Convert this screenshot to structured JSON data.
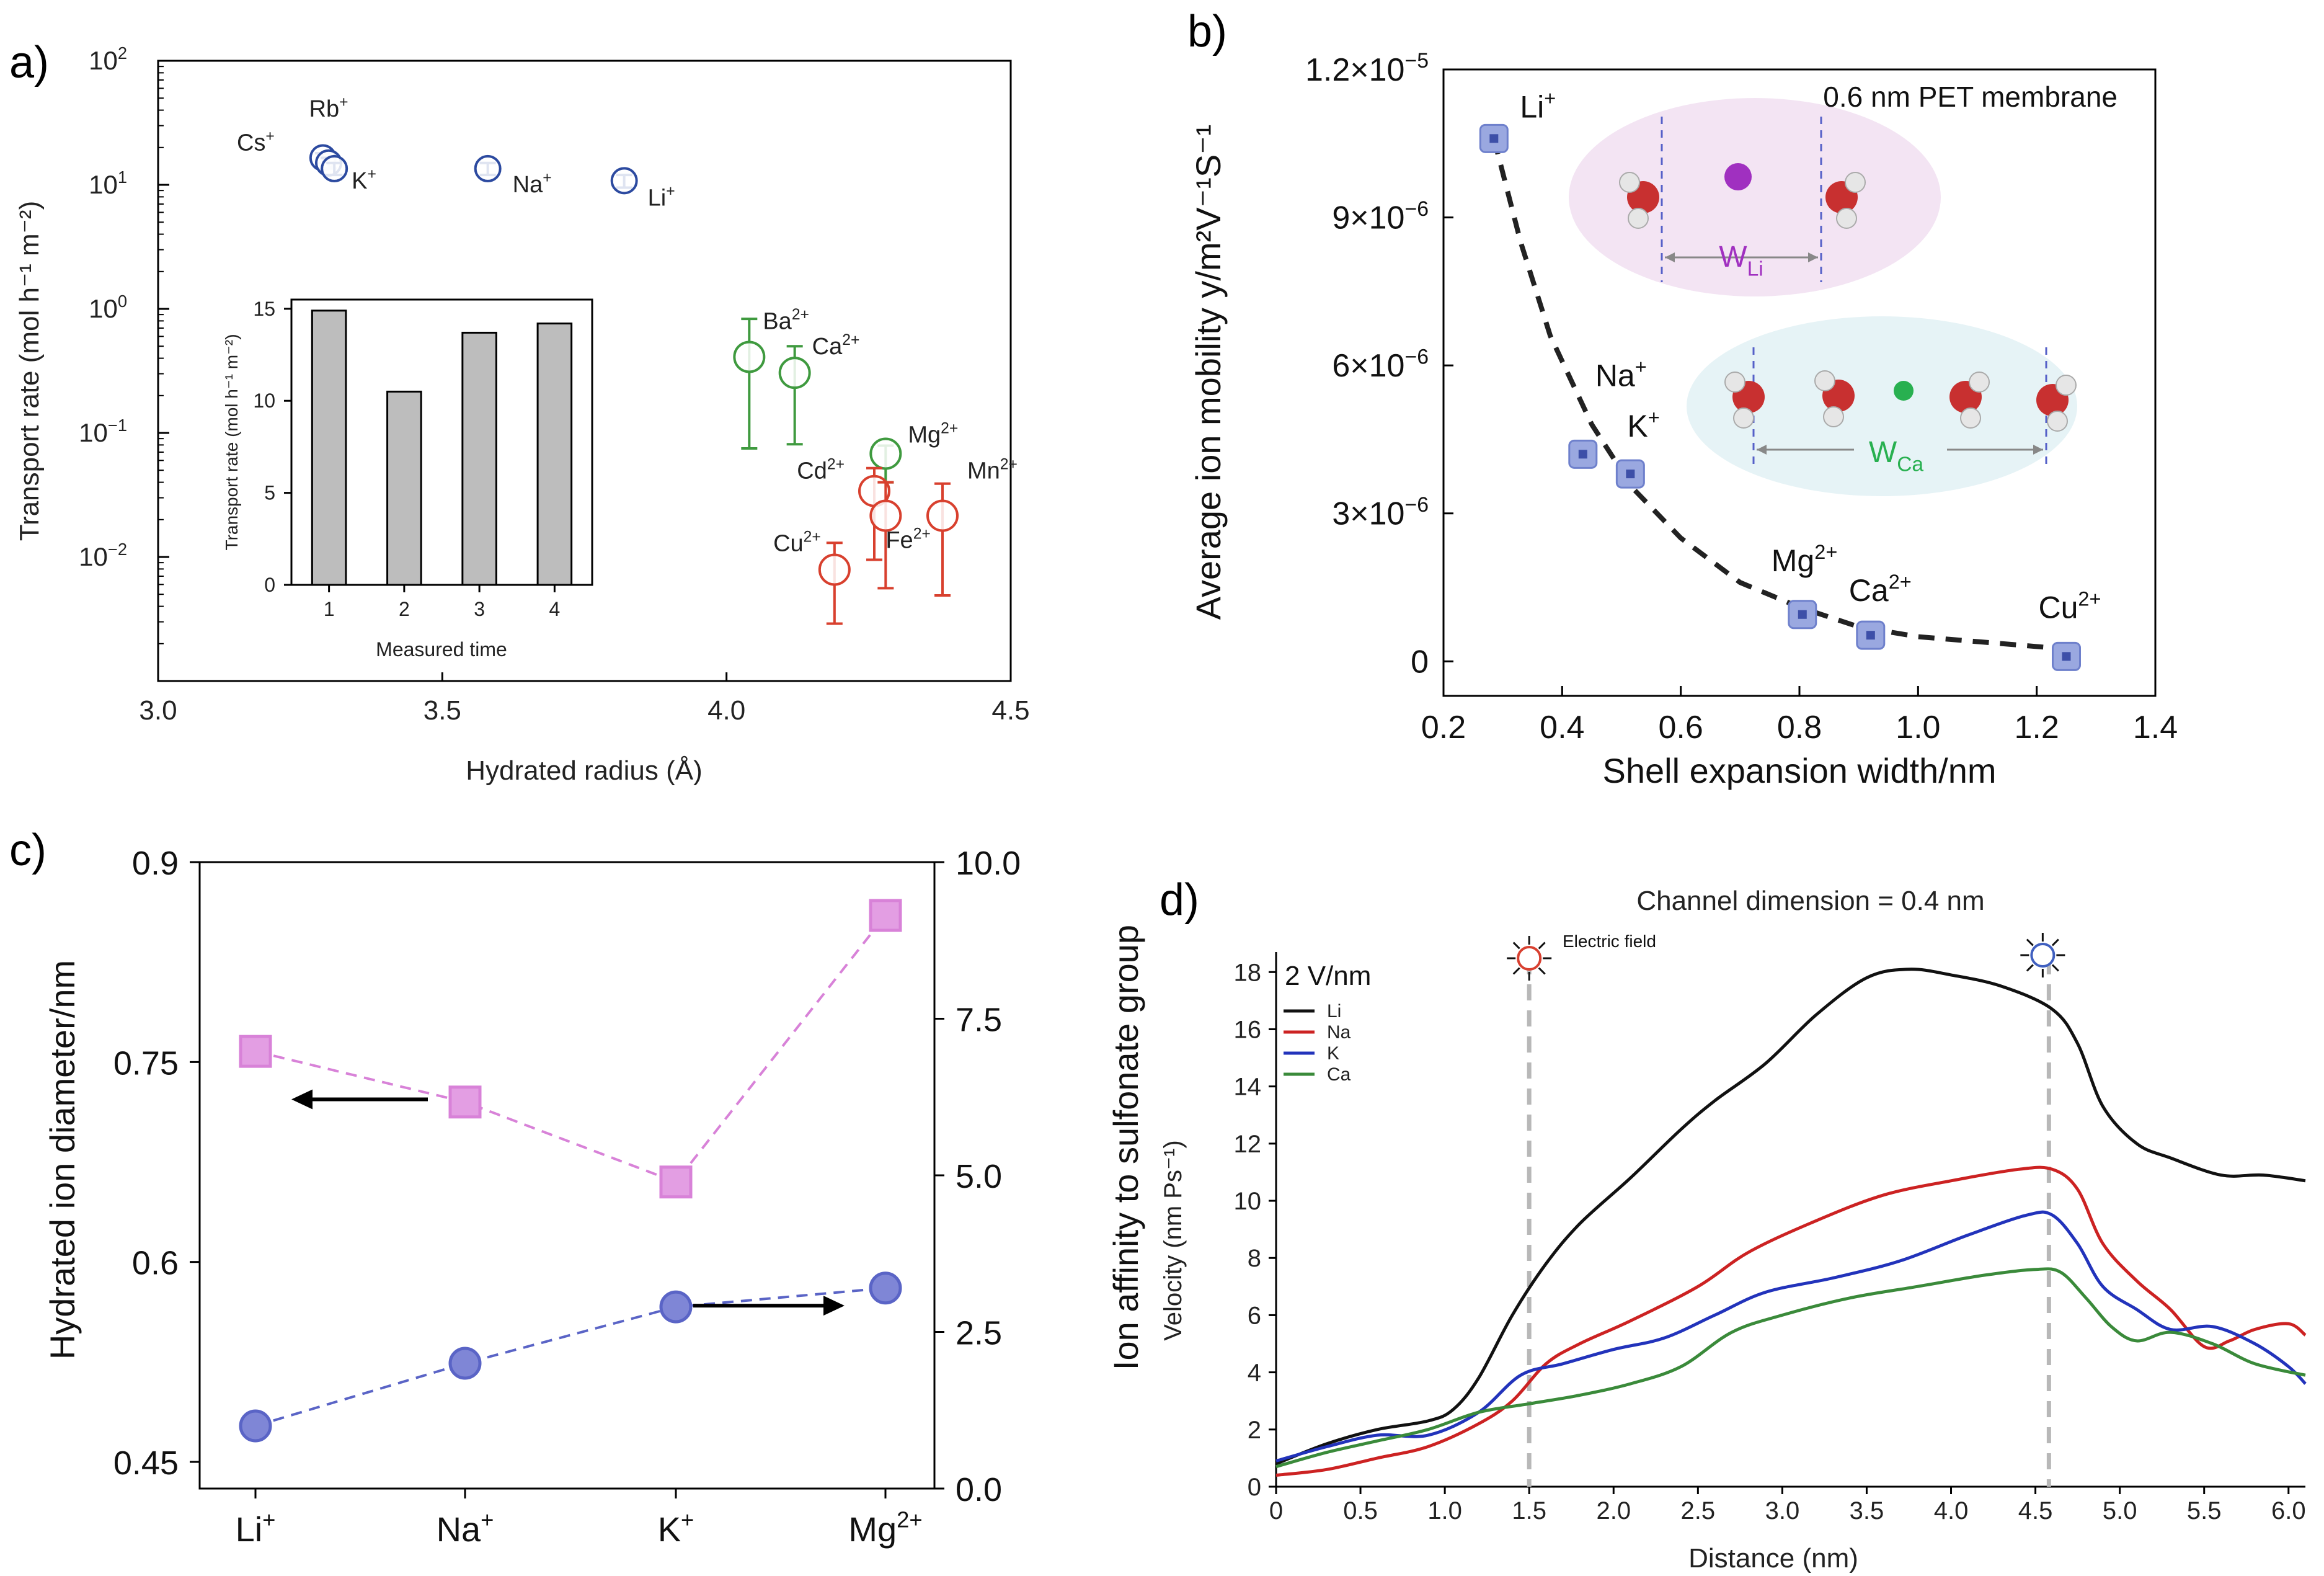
{
  "colors": {
    "blue": "#2c4aa0",
    "green": "#3f9a3f",
    "red": "#d8402e",
    "bar": "#bdbdbd",
    "markerA": "#9aa8e0",
    "markerAEdge": "#6e80cc",
    "pink": "#d882d8",
    "pinkFill": "#e39ee3",
    "bluePt": "#5a64c6",
    "bluePtFill": "#7f86d6",
    "li": "#111111",
    "na": "#cc2222",
    "k": "#2233bb",
    "ca": "#3a8a3a",
    "pinkRegion": "#f3e4f3",
    "cyanRegion": "#e6f3f6",
    "dashDivider": "#b8b8b8"
  },
  "panels": {
    "a": {
      "label": "a)"
    },
    "b": {
      "label": "b)"
    },
    "c": {
      "label": "c)"
    },
    "d": {
      "label": "d)"
    }
  },
  "chart_data": [
    {
      "panel": "a",
      "type": "scatter",
      "xlabel": "Hydrated radius (Å)",
      "ylabel": "Transport rate (mol h⁻¹ m⁻²)",
      "xlim": [
        3.0,
        4.5
      ],
      "ylim": [
        0.001,
        100
      ],
      "yscale": "log",
      "xticks": [
        "3.0",
        "3.5",
        "4.0",
        "4.5"
      ],
      "yticks": [
        {
          "v": 0.01,
          "base": "10",
          "exp": "−2"
        },
        {
          "v": 0.1,
          "base": "10",
          "exp": "−1"
        },
        {
          "v": 1,
          "base": "10",
          "exp": "0"
        },
        {
          "v": 10,
          "base": "10",
          "exp": "1"
        },
        {
          "v": 100,
          "base": "10",
          "exp": "2"
        }
      ],
      "points": [
        {
          "ion": "Cs",
          "sup": "+",
          "x": 3.29,
          "y": 16.5,
          "lo": 15.0,
          "hi": 18.0,
          "color": "blue"
        },
        {
          "ion": "Rb",
          "sup": "+",
          "x": 3.3,
          "y": 15.0,
          "lo": 13.5,
          "hi": 16.5,
          "color": "blue"
        },
        {
          "ion": "K",
          "sup": "+",
          "x": 3.31,
          "y": 13.5,
          "lo": 12.0,
          "hi": 15.0,
          "color": "blue"
        },
        {
          "ion": "Na",
          "sup": "+",
          "x": 3.58,
          "y": 13.5,
          "lo": 12.0,
          "hi": 15.0,
          "color": "blue"
        },
        {
          "ion": "Li",
          "sup": "+",
          "x": 3.82,
          "y": 10.8,
          "lo": 9.5,
          "hi": 12.0,
          "color": "blue"
        },
        {
          "ion": "Ba",
          "sup": "2+",
          "x": 4.04,
          "y": 0.41,
          "lo": 0.075,
          "hi": 0.83,
          "color": "green"
        },
        {
          "ion": "Ca",
          "sup": "2+",
          "x": 4.12,
          "y": 0.305,
          "lo": 0.081,
          "hi": 0.5,
          "color": "green"
        },
        {
          "ion": "Mg",
          "sup": "2+",
          "x": 4.28,
          "y": 0.068,
          "lo": 0.04,
          "hi": 0.079,
          "color": "green"
        },
        {
          "ion": "Cd",
          "sup": "2+",
          "x": 4.26,
          "y": 0.034,
          "lo": 0.0095,
          "hi": 0.052,
          "color": "red"
        },
        {
          "ion": "Fe",
          "sup": "2+",
          "x": 4.28,
          "y": 0.0215,
          "lo": 0.0056,
          "hi": 0.04,
          "color": "red"
        },
        {
          "ion": "Mn",
          "sup": "2+",
          "x": 4.38,
          "y": 0.0215,
          "lo": 0.0049,
          "hi": 0.039,
          "color": "red"
        },
        {
          "ion": "Cu",
          "sup": "2+",
          "x": 4.19,
          "y": 0.0079,
          "lo": 0.0029,
          "hi": 0.013,
          "color": "red"
        }
      ],
      "inset": {
        "type": "bar",
        "xlabel": "Measured time",
        "ylabel": "Transport rate (mol h⁻¹ m⁻²)",
        "categories": [
          "1",
          "2",
          "3",
          "4"
        ],
        "values": [
          14.9,
          10.5,
          13.7,
          14.2
        ],
        "ylim": [
          0,
          15.5
        ],
        "yticks": [
          "0",
          "5",
          "10",
          "15"
        ]
      }
    },
    {
      "panel": "b",
      "type": "scatter",
      "xlabel": "Shell expansion width/nm",
      "ylabel": "Average ion mobility y/m²V⁻¹S⁻¹",
      "annotation": "0.6 nm PET membrane",
      "xlim": [
        0.2,
        1.4
      ],
      "ylim": [
        -7e-07,
        1.2e-05
      ],
      "xticks": [
        "0.2",
        "0.4",
        "0.6",
        "0.8",
        "1.0",
        "1.2",
        "1.4"
      ],
      "yticks": [
        {
          "v": 0,
          "m": "0",
          "e": ""
        },
        {
          "v": 3e-06,
          "m": "3×10",
          "e": "−6"
        },
        {
          "v": 6e-06,
          "m": "6×10",
          "e": "−6"
        },
        {
          "v": 9e-06,
          "m": "9×10",
          "e": "−6"
        },
        {
          "v": 1.2e-05,
          "m": "1.2×10",
          "e": "−5"
        }
      ],
      "points": [
        {
          "ion": "Li",
          "sup": "+",
          "x": 0.285,
          "y": 1.06e-05
        },
        {
          "ion": "Na",
          "sup": "+",
          "x": 0.435,
          "y": 4.2e-06
        },
        {
          "ion": "K",
          "sup": "+",
          "x": 0.515,
          "y": 3.8e-06
        },
        {
          "ion": "Mg",
          "sup": "2+",
          "x": 0.805,
          "y": 9.5e-07
        },
        {
          "ion": "Ca",
          "sup": "2+",
          "x": 0.92,
          "y": 5.3e-07
        },
        {
          "ion": "Cu",
          "sup": "2+",
          "x": 1.25,
          "y": 1e-07
        }
      ],
      "fit": [
        [
          0.285,
          1.06e-05
        ],
        [
          0.33,
          8.5e-06
        ],
        [
          0.38,
          6.6e-06
        ],
        [
          0.45,
          4.8e-06
        ],
        [
          0.52,
          3.5e-06
        ],
        [
          0.6,
          2.5e-06
        ],
        [
          0.7,
          1.6e-06
        ],
        [
          0.8,
          1.1e-06
        ],
        [
          0.9,
          7e-07
        ],
        [
          1.0,
          5e-07
        ],
        [
          1.1,
          4e-07
        ],
        [
          1.25,
          2.5e-07
        ]
      ],
      "insetLabels": [
        {
          "base": "W",
          "sub": "Li"
        },
        {
          "base": "W",
          "sub": "Ca"
        }
      ]
    },
    {
      "panel": "c",
      "type": "line",
      "ylabel_left": "Hydrated ion diameter/nm",
      "ylabel_right": "Ion affinity to sulfonate group",
      "categories": [
        {
          "base": "Li",
          "sup": "+"
        },
        {
          "base": "Na",
          "sup": "+"
        },
        {
          "base": "K",
          "sup": "+"
        },
        {
          "base": "Mg",
          "sup": "2+"
        }
      ],
      "ylim_left": [
        0.43,
        0.9
      ],
      "ylim_right": [
        0.0,
        10.0
      ],
      "yticks_left": [
        "0.45",
        "0.6",
        "0.75",
        "0.9"
      ],
      "yticks_right": [
        "0.0",
        "2.5",
        "5.0",
        "7.5",
        "10.0"
      ],
      "series": [
        {
          "axis": "left",
          "marker": "square",
          "color": "pink",
          "values": [
            0.758,
            0.72,
            0.66,
            0.86
          ]
        },
        {
          "axis": "right",
          "marker": "circle",
          "color": "bluePt",
          "values": [
            1.0,
            2.0,
            2.9,
            3.2
          ]
        }
      ]
    },
    {
      "panel": "d",
      "type": "line",
      "title": "Channel dimension = 0.4 nm",
      "xlabel": "Distance (nm)",
      "ylabel": "Velocity (nm Ps⁻¹)",
      "fieldLabel": "2 V/nm",
      "efieldLabel": "Electric field",
      "xlim": [
        0,
        6.1
      ],
      "ylim": [
        0,
        18.7
      ],
      "xticks": [
        "0",
        "0.5",
        "1.0",
        "1.5",
        "2.0",
        "2.5",
        "3.0",
        "3.5",
        "4.0",
        "4.5",
        "5.0",
        "5.5",
        "6.0"
      ],
      "yticks": [
        "0",
        "2",
        "4",
        "6",
        "8",
        "10",
        "12",
        "14",
        "16",
        "18"
      ],
      "dividers": [
        1.5,
        4.58
      ],
      "series": [
        {
          "name": "Li",
          "color": "li",
          "points": [
            [
              0,
              0.8
            ],
            [
              0.3,
              1.5
            ],
            [
              0.6,
              2.0
            ],
            [
              0.9,
              2.3
            ],
            [
              1.05,
              2.7
            ],
            [
              1.2,
              3.8
            ],
            [
              1.4,
              6.0
            ],
            [
              1.6,
              7.8
            ],
            [
              1.8,
              9.2
            ],
            [
              2.1,
              10.8
            ],
            [
              2.4,
              12.5
            ],
            [
              2.6,
              13.5
            ],
            [
              2.9,
              14.8
            ],
            [
              3.2,
              16.5
            ],
            [
              3.5,
              17.8
            ],
            [
              3.75,
              18.1
            ],
            [
              4.0,
              17.9
            ],
            [
              4.3,
              17.5
            ],
            [
              4.6,
              16.7
            ],
            [
              4.75,
              15.5
            ],
            [
              4.9,
              13.3
            ],
            [
              5.1,
              12.0
            ],
            [
              5.3,
              11.5
            ],
            [
              5.6,
              10.9
            ],
            [
              5.85,
              10.9
            ],
            [
              6.1,
              10.7
            ]
          ]
        },
        {
          "name": "Na",
          "color": "na",
          "points": [
            [
              0,
              0.4
            ],
            [
              0.3,
              0.6
            ],
            [
              0.6,
              1.0
            ],
            [
              0.9,
              1.4
            ],
            [
              1.2,
              2.2
            ],
            [
              1.4,
              3.0
            ],
            [
              1.6,
              4.3
            ],
            [
              1.8,
              5.0
            ],
            [
              2.1,
              5.8
            ],
            [
              2.5,
              7.0
            ],
            [
              2.8,
              8.2
            ],
            [
              3.2,
              9.3
            ],
            [
              3.6,
              10.2
            ],
            [
              4.0,
              10.7
            ],
            [
              4.4,
              11.1
            ],
            [
              4.6,
              11.1
            ],
            [
              4.75,
              10.4
            ],
            [
              4.9,
              8.5
            ],
            [
              5.1,
              7.2
            ],
            [
              5.3,
              6.2
            ],
            [
              5.5,
              4.9
            ],
            [
              5.65,
              5.1
            ],
            [
              5.8,
              5.5
            ],
            [
              6.0,
              5.7
            ],
            [
              6.1,
              5.3
            ]
          ]
        },
        {
          "name": "K",
          "color": "k",
          "points": [
            [
              0,
              0.9
            ],
            [
              0.3,
              1.4
            ],
            [
              0.6,
              1.8
            ],
            [
              0.9,
              1.8
            ],
            [
              1.2,
              2.6
            ],
            [
              1.45,
              3.9
            ],
            [
              1.7,
              4.3
            ],
            [
              2.0,
              4.8
            ],
            [
              2.3,
              5.2
            ],
            [
              2.6,
              6.0
            ],
            [
              2.9,
              6.8
            ],
            [
              3.3,
              7.3
            ],
            [
              3.7,
              7.9
            ],
            [
              4.1,
              8.8
            ],
            [
              4.45,
              9.5
            ],
            [
              4.6,
              9.5
            ],
            [
              4.75,
              8.5
            ],
            [
              4.9,
              7.0
            ],
            [
              5.1,
              6.2
            ],
            [
              5.3,
              5.5
            ],
            [
              5.55,
              5.6
            ],
            [
              5.8,
              5.0
            ],
            [
              6.0,
              4.2
            ],
            [
              6.1,
              3.6
            ]
          ]
        },
        {
          "name": "Ca",
          "color": "ca",
          "points": [
            [
              0,
              0.7
            ],
            [
              0.3,
              1.2
            ],
            [
              0.6,
              1.6
            ],
            [
              0.9,
              2.0
            ],
            [
              1.2,
              2.6
            ],
            [
              1.5,
              2.9
            ],
            [
              1.8,
              3.2
            ],
            [
              2.1,
              3.6
            ],
            [
              2.4,
              4.2
            ],
            [
              2.7,
              5.4
            ],
            [
              3.0,
              6.0
            ],
            [
              3.4,
              6.6
            ],
            [
              3.8,
              7.0
            ],
            [
              4.2,
              7.4
            ],
            [
              4.5,
              7.6
            ],
            [
              4.65,
              7.5
            ],
            [
              4.8,
              6.6
            ],
            [
              4.95,
              5.6
            ],
            [
              5.1,
              5.1
            ],
            [
              5.3,
              5.4
            ],
            [
              5.55,
              5.0
            ],
            [
              5.8,
              4.3
            ],
            [
              6.1,
              3.9
            ]
          ]
        }
      ]
    }
  ]
}
